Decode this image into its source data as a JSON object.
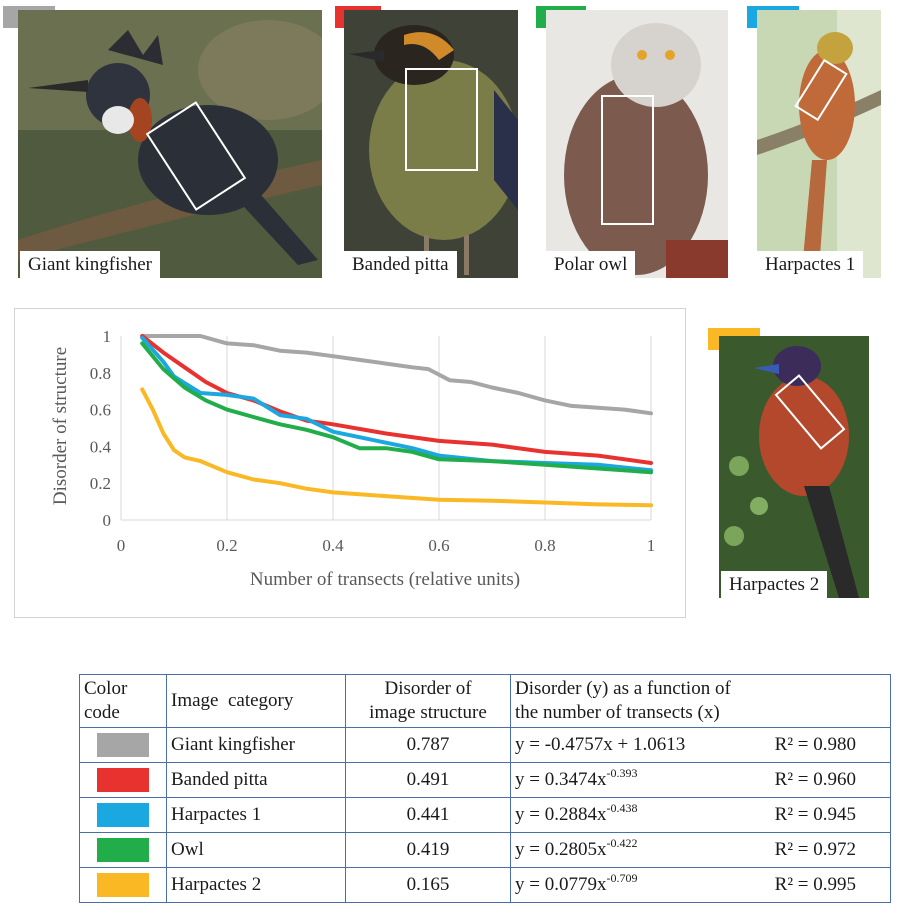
{
  "panels": [
    {
      "id": "giant-kingfisher",
      "caption": "Giant kingfisher",
      "color": "#a6a6a6"
    },
    {
      "id": "banded-pitta",
      "caption": "Banded pitta",
      "color": "#e8322f"
    },
    {
      "id": "polar-owl",
      "caption": "Polar owl",
      "color": "#22ad4b"
    },
    {
      "id": "harpactes-1",
      "caption": "Harpactes 1",
      "color": "#1ba7e0"
    },
    {
      "id": "harpactes-2",
      "caption": "Harpactes 2",
      "color": "#f9b824"
    }
  ],
  "chart_data": {
    "type": "line",
    "xlabel": "Number of transects (relative units)",
    "ylabel": "Disorder of structure",
    "xlim": [
      0,
      1
    ],
    "ylim": [
      0,
      1
    ],
    "xticks": [
      "0",
      "0.2",
      "0.4",
      "0.6",
      "0.8",
      "1"
    ],
    "yticks": [
      "0",
      "0.2",
      "0.4",
      "0.6",
      "0.8",
      "1"
    ],
    "grid": "vertical",
    "series": [
      {
        "name": "Giant kingfisher",
        "color": "#a6a6a6",
        "x": [
          0.04,
          0.08,
          0.15,
          0.2,
          0.25,
          0.3,
          0.35,
          0.4,
          0.45,
          0.5,
          0.55,
          0.58,
          0.62,
          0.66,
          0.7,
          0.75,
          0.8,
          0.85,
          0.9,
          0.95,
          1.0
        ],
        "y": [
          1.0,
          1.0,
          1.0,
          0.96,
          0.95,
          0.92,
          0.91,
          0.89,
          0.87,
          0.85,
          0.83,
          0.82,
          0.76,
          0.75,
          0.72,
          0.69,
          0.65,
          0.62,
          0.61,
          0.6,
          0.58
        ]
      },
      {
        "name": "Banded pitta",
        "color": "#e8322f",
        "x": [
          0.04,
          0.08,
          0.12,
          0.16,
          0.2,
          0.25,
          0.3,
          0.35,
          0.4,
          0.5,
          0.6,
          0.7,
          0.8,
          0.9,
          1.0
        ],
        "y": [
          1.0,
          0.91,
          0.83,
          0.75,
          0.69,
          0.65,
          0.59,
          0.54,
          0.52,
          0.47,
          0.43,
          0.41,
          0.37,
          0.35,
          0.31
        ]
      },
      {
        "name": "Harpactes 1",
        "color": "#1ba7e0",
        "x": [
          0.04,
          0.08,
          0.1,
          0.15,
          0.2,
          0.25,
          0.3,
          0.35,
          0.4,
          0.45,
          0.5,
          0.55,
          0.6,
          0.7,
          0.8,
          0.9,
          1.0
        ],
        "y": [
          0.99,
          0.86,
          0.78,
          0.69,
          0.68,
          0.66,
          0.57,
          0.55,
          0.48,
          0.45,
          0.42,
          0.39,
          0.35,
          0.32,
          0.31,
          0.3,
          0.27
        ]
      },
      {
        "name": "Owl",
        "color": "#22ad4b",
        "x": [
          0.04,
          0.08,
          0.12,
          0.16,
          0.2,
          0.25,
          0.3,
          0.35,
          0.4,
          0.45,
          0.5,
          0.55,
          0.6,
          0.7,
          0.8,
          0.9,
          1.0
        ],
        "y": [
          0.96,
          0.82,
          0.72,
          0.65,
          0.6,
          0.56,
          0.52,
          0.49,
          0.45,
          0.39,
          0.39,
          0.37,
          0.33,
          0.32,
          0.3,
          0.28,
          0.26
        ]
      },
      {
        "name": "Harpactes 2",
        "color": "#f9b824",
        "x": [
          0.04,
          0.06,
          0.08,
          0.1,
          0.12,
          0.15,
          0.2,
          0.25,
          0.3,
          0.35,
          0.4,
          0.5,
          0.6,
          0.7,
          0.8,
          0.9,
          1.0
        ],
        "y": [
          0.71,
          0.6,
          0.47,
          0.38,
          0.34,
          0.32,
          0.26,
          0.22,
          0.2,
          0.17,
          0.15,
          0.13,
          0.11,
          0.105,
          0.095,
          0.085,
          0.08
        ]
      }
    ]
  },
  "table": {
    "headers": {
      "color_code": [
        "Color",
        "code"
      ],
      "category": "Image  category",
      "disorder": [
        "Disorder of",
        "image structure"
      ],
      "function": [
        "Disorder (y) as a function of",
        "the number of transects (x)"
      ]
    },
    "rows": [
      {
        "color": "#a6a6a6",
        "category": "Giant kingfisher",
        "disorder": "0.787",
        "eq_base": "y = -0.4757x + 1.0613",
        "eq_exp": "",
        "r2": "R² = 0.980"
      },
      {
        "color": "#e8322f",
        "category": "Banded pitta",
        "disorder": "0.491",
        "eq_base": "y = 0.3474x",
        "eq_exp": "-0.393",
        "r2": "R² = 0.960"
      },
      {
        "color": "#1ba7e0",
        "category": "Harpactes 1",
        "disorder": "0.441",
        "eq_base": "y = 0.2884x",
        "eq_exp": "-0.438",
        "r2": "R² = 0.945"
      },
      {
        "color": "#22ad4b",
        "category": "Owl",
        "disorder": "0.419",
        "eq_base": "y = 0.2805x",
        "eq_exp": "-0.422",
        "r2": "R² = 0.972"
      },
      {
        "color": "#f9b824",
        "category": "Harpactes 2",
        "disorder": "0.165",
        "eq_base": "y = 0.0779x",
        "eq_exp": "-0.709",
        "r2": "R² = 0.995"
      }
    ]
  }
}
